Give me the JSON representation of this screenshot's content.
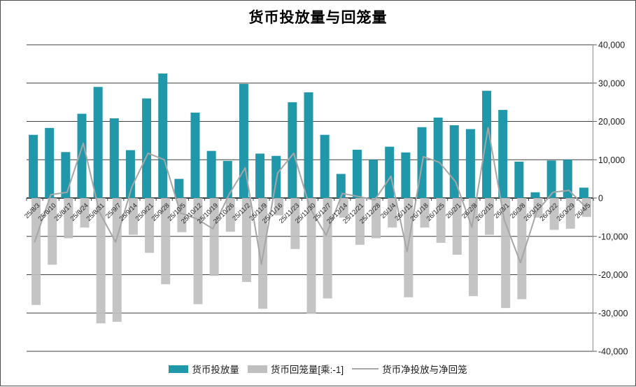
{
  "title": "货币投放量与回笼量",
  "legend": {
    "injection_label": "货币投放量",
    "withdrawal_label": "货币回笼量[乘:-1]",
    "net_label": "货币净投放与净回笼"
  },
  "colors": {
    "injection": "#2198aa",
    "withdrawal": "#bfbfbf",
    "net_line": "#a6a6a6",
    "gridline": "#3f3f3f",
    "zero_axis": "#000000",
    "right_axis": "#8c8c8c",
    "tick": "#595959",
    "y_label": "#1a1a1a"
  },
  "chart_data": {
    "type": "bar",
    "subtype": "combo-bar-line",
    "title": "货币投放量与回笼量",
    "xlabel": "",
    "ylabel": "",
    "ylim": [
      -40000,
      40000
    ],
    "grid": true,
    "legend_position": "bottom",
    "y_ticks": [
      {
        "label": "40,000",
        "value": 40000
      },
      {
        "label": "30,000",
        "value": 30000
      },
      {
        "label": "20,000",
        "value": 20000
      },
      {
        "label": "10,000",
        "value": 10000
      },
      {
        "label": "0",
        "value": 0
      },
      {
        "label": "-10,000",
        "value": -10000
      },
      {
        "label": "-20,000",
        "value": -20000
      },
      {
        "label": "-30,000",
        "value": -30000
      },
      {
        "label": "-40,000",
        "value": -40000
      }
    ],
    "categories": [
      "25/8/3",
      "25/8/10",
      "25/8/17",
      "25/8/24",
      "25/8/31",
      "25/9/7",
      "25/9/14",
      "25/9/21",
      "25/9/28",
      "25/10/5",
      "25/10/12",
      "25/10/19",
      "25/10/26",
      "25/11/2",
      "25/11/9",
      "25/11/16",
      "25/11/23",
      "25/11/30",
      "25/12/7",
      "25/12/14",
      "25/12/21",
      "25/12/28",
      "26/1/4",
      "26/1/11",
      "26/1/18",
      "26/1/25",
      "26/2/1",
      "26/2/8",
      "26/2/15",
      "26/3/1",
      "26/3/8",
      "26/3/15",
      "26/3/22",
      "26/3/29",
      "26/4/5"
    ],
    "series": [
      {
        "name": "货币投放量",
        "type": "bar",
        "color": "#2198aa",
        "values": [
          16500,
          18300,
          12000,
          22000,
          29000,
          20800,
          12500,
          26000,
          32500,
          5000,
          22300,
          12300,
          9700,
          29800,
          11600,
          11000,
          25000,
          27600,
          16500,
          6300,
          12600,
          10000,
          13400,
          11900,
          18500,
          21000,
          19000,
          18000,
          28000,
          23000,
          9500,
          1500,
          9800,
          10000,
          2700
        ]
      },
      {
        "name": "货币回笼量[乘:-1]",
        "type": "bar",
        "color": "#bfbfbf",
        "values": [
          -27900,
          -17400,
          -10500,
          -7700,
          -32700,
          -32300,
          -9600,
          -14300,
          -22500,
          -8900,
          -27700,
          -20300,
          -8800,
          -21900,
          -28900,
          -4500,
          -13300,
          -30200,
          -26200,
          -5100,
          -12200,
          -10500,
          -7700,
          -25900,
          -7700,
          -11700,
          -14800,
          -25600,
          -9600,
          -28700,
          -26400,
          -5100,
          -8300,
          -8000,
          -4900
        ]
      },
      {
        "name": "货币净投放与净回笼",
        "type": "line",
        "color": "#a6a6a6",
        "values": [
          -11400,
          900,
          1500,
          14300,
          -3700,
          -11500,
          2900,
          11700,
          10000,
          -3900,
          -5400,
          -8000,
          900,
          7900,
          -17300,
          6500,
          11700,
          -2600,
          -9700,
          1200,
          400,
          -500,
          5700,
          -14000,
          10800,
          9300,
          4200,
          -7600,
          18400,
          -5700,
          -16900,
          -3600,
          1500,
          2000,
          -2200
        ]
      }
    ]
  }
}
